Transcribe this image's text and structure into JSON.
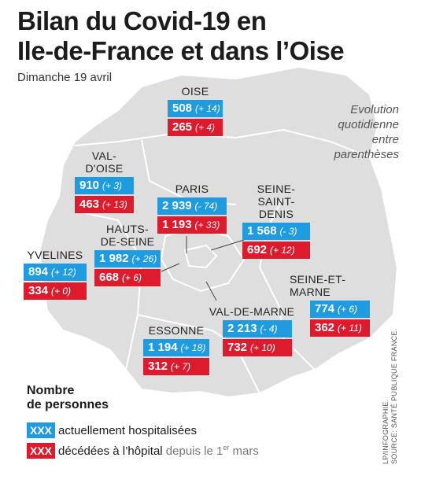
{
  "header": {
    "title_line1": "Bilan du Covid-19 en",
    "title_line2": "Ile-de-France et dans l’Oise",
    "subtitle": "Dimanche 19 avril",
    "evolution_note": "Evolution quotidienne entre parenthèses"
  },
  "departments": [
    {
      "name": "OISE",
      "hospitalized": "508",
      "hosp_change": "(+ 14)",
      "deaths": "265",
      "deaths_change": "(+ 4)"
    },
    {
      "name": "VAL-D'OISE",
      "hospitalized": "910",
      "hosp_change": "(+ 3)",
      "deaths": "463",
      "deaths_change": "(+ 13)"
    },
    {
      "name": "PARIS",
      "hospitalized": "2 939",
      "hosp_change": "(- 74)",
      "deaths": "1 193",
      "deaths_change": "(+ 33)"
    },
    {
      "name": "SEINE-SAINT-DENIS",
      "name_line1": "SEINE-",
      "name_line2": "SAINT-DENIS",
      "hospitalized": "1 568",
      "hosp_change": "(- 3)",
      "deaths": "692",
      "deaths_change": "(+ 12)"
    },
    {
      "name": "HAUTS-DE-SEINE",
      "name_line1": "HAUTS-",
      "name_line2": "DE-SEINE",
      "hospitalized": "1 982",
      "hosp_change": "(+ 26)",
      "deaths": "668",
      "deaths_change": "(+ 6)"
    },
    {
      "name": "YVELINES",
      "hospitalized": "894",
      "hosp_change": "(+ 12)",
      "deaths": "334",
      "deaths_change": "(+ 0)"
    },
    {
      "name": "SEINE-ET-MARNE",
      "hospitalized": "774",
      "hosp_change": "(+ 6)",
      "deaths": "362",
      "deaths_change": "(+ 11)"
    },
    {
      "name": "VAL-DE-MARNE",
      "hospitalized": "2 213",
      "hosp_change": "(- 4)",
      "deaths": "732",
      "deaths_change": "(+ 10)"
    },
    {
      "name": "ESSONNE",
      "hospitalized": "1 194",
      "hosp_change": "(+ 18)",
      "deaths": "312",
      "deaths_change": "(+ 7)"
    }
  ],
  "legend": {
    "title_line1": "Nombre",
    "title_line2": "de personnes",
    "swatch_text": "XXX",
    "hospitalized_label": "actuellement hospitalisées",
    "deaths_label": "décédées à l’hôpital",
    "deaths_suffix_pre": "depuis le 1",
    "deaths_suffix_sup": "er",
    "deaths_suffix_post": " mars"
  },
  "source": {
    "line1": "LP/INFOGRAPHIE.",
    "line2": "SOURCE: SANTÉ PUBLIQUE FRANCE."
  },
  "colors": {
    "hospitalized": "#1f9be0",
    "deaths": "#de1b2c",
    "map_fill": "#dcdcdc",
    "map_stroke": "#ffffff"
  }
}
